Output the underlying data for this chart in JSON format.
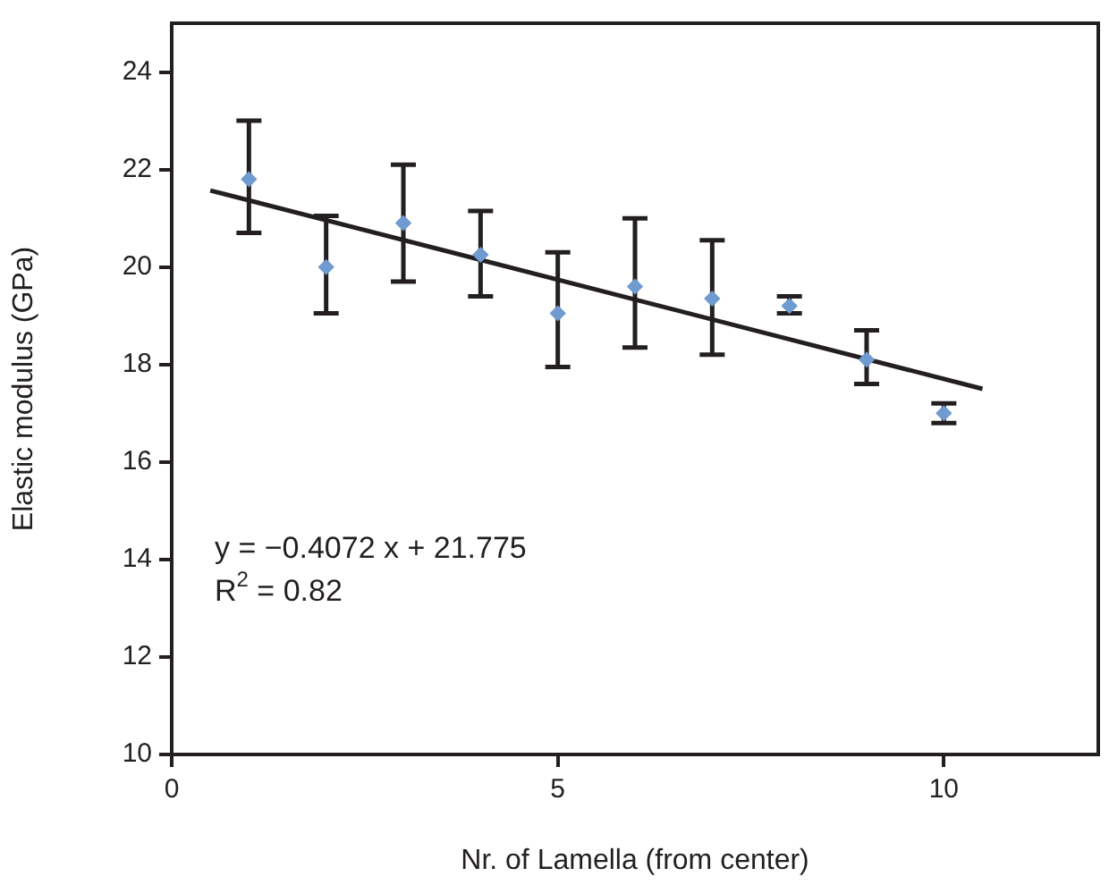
{
  "chart_data": {
    "type": "scatter",
    "xlabel": "Nr. of Lamella (from center)",
    "ylabel": "Elastic modulus (GPa)",
    "xlim": [
      0,
      12
    ],
    "xticks": [
      0,
      5,
      10
    ],
    "ylim": [
      10,
      25
    ],
    "yticks": [
      10,
      12,
      14,
      16,
      18,
      20,
      22,
      24
    ],
    "marker": "diamond",
    "legend": false,
    "series": [
      {
        "color": "#6f9bd1",
        "x": [
          1,
          2,
          3,
          4,
          5,
          6,
          7,
          8,
          9,
          10
        ],
        "values": [
          21.8,
          20.0,
          20.9,
          20.25,
          19.05,
          19.6,
          19.35,
          19.2,
          18.1,
          17.0
        ],
        "errors": [
          [
            20.7,
            23.0
          ],
          [
            19.05,
            21.05
          ],
          [
            19.7,
            22.1
          ],
          [
            19.4,
            21.15
          ],
          [
            17.95,
            20.3
          ],
          [
            18.35,
            21.0
          ],
          [
            18.2,
            20.55
          ],
          [
            19.05,
            19.4
          ],
          [
            17.6,
            18.7
          ],
          [
            16.8,
            17.2
          ]
        ]
      },
      {
        "type": "line",
        "color": "#231f20",
        "marker": "none",
        "x": [
          0.5,
          10.5
        ],
        "values": [
          21.57,
          17.5
        ]
      }
    ],
    "annotations": [
      "y = −0.4072 x + 21.775",
      "R$^{2}$ = 0.82"
    ]
  }
}
